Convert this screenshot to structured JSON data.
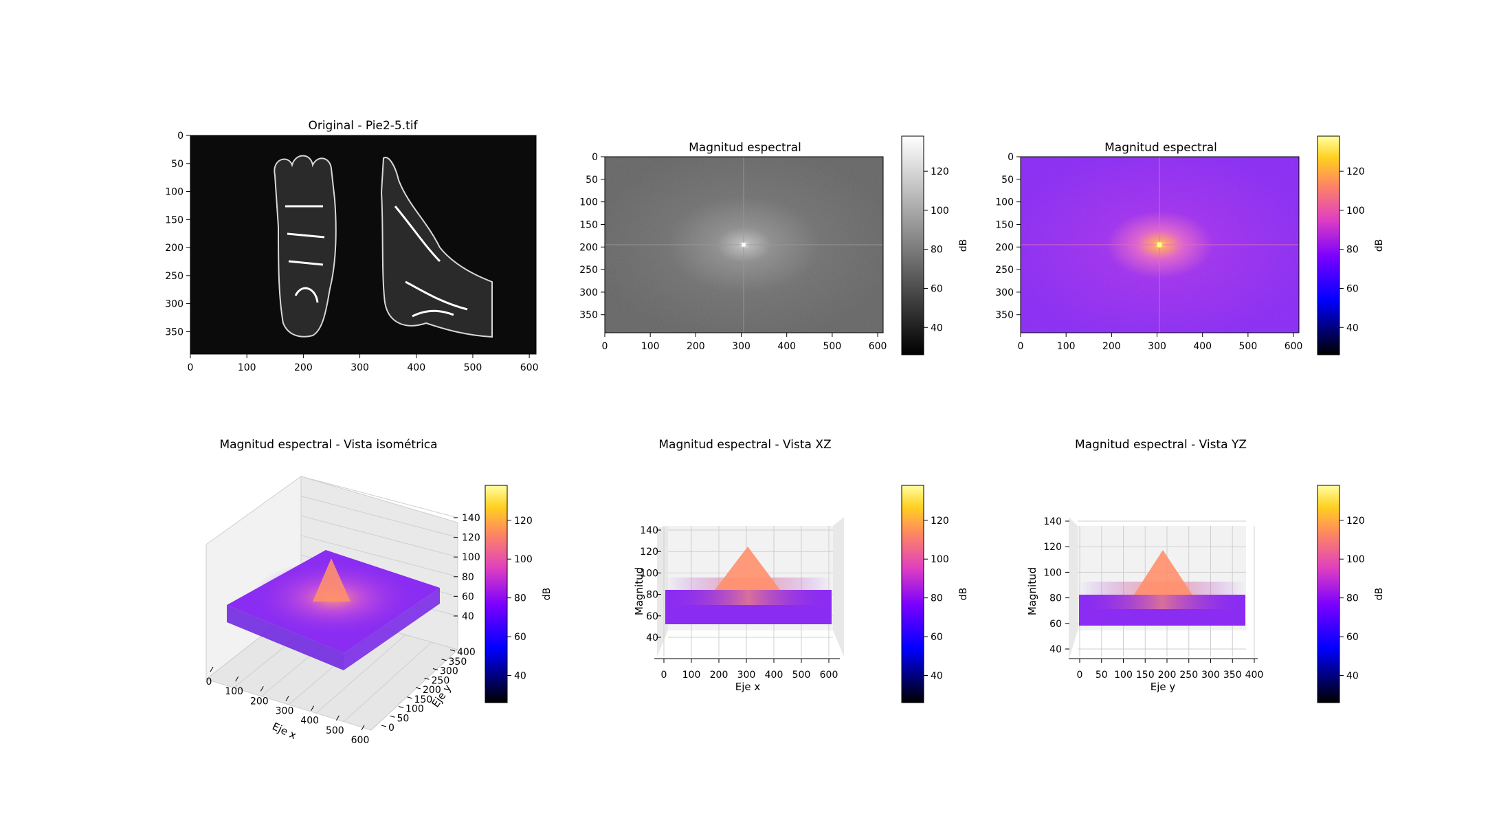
{
  "chart_data": [
    {
      "type": "image",
      "title": "Original - Pie2-5.tif",
      "x_ticks": [
        0,
        100,
        200,
        300,
        400,
        500,
        600
      ],
      "y_ticks": [
        0,
        50,
        100,
        150,
        200,
        250,
        300,
        350
      ],
      "xlim": [
        0,
        612
      ],
      "ylim": [
        390,
        0
      ]
    },
    {
      "type": "heatmap",
      "title": "Magnitud espectral",
      "colormap": "gray",
      "x_ticks": [
        0,
        100,
        200,
        300,
        400,
        500,
        600
      ],
      "y_ticks": [
        0,
        50,
        100,
        150,
        200,
        250,
        300,
        350
      ],
      "xlim": [
        0,
        612
      ],
      "ylim": [
        390,
        0
      ],
      "peak": [
        306,
        195
      ],
      "colorbar": {
        "label": "dB",
        "ticks": [
          40,
          60,
          80,
          100,
          120
        ],
        "range": [
          26,
          138
        ]
      }
    },
    {
      "type": "heatmap",
      "title": "Magnitud espectral",
      "colormap": "gnuplot2",
      "x_ticks": [
        0,
        100,
        200,
        300,
        400,
        500,
        600
      ],
      "y_ticks": [
        0,
        50,
        100,
        150,
        200,
        250,
        300,
        350
      ],
      "xlim": [
        0,
        612
      ],
      "ylim": [
        390,
        0
      ],
      "peak": [
        306,
        195
      ],
      "colorbar": {
        "label": "dB",
        "ticks": [
          40,
          60,
          80,
          100,
          120
        ],
        "range": [
          26,
          138
        ]
      }
    },
    {
      "type": "surface3d",
      "title": "Magnitud espectral - Vista isométrica",
      "xlabel": "Eje x",
      "ylabel": "Eje y",
      "x_ticks": [
        0,
        100,
        200,
        300,
        400,
        500,
        600
      ],
      "y_ticks": [
        0,
        50,
        100,
        150,
        200,
        250,
        300,
        350,
        400
      ],
      "z_ticks": [
        40,
        60,
        80,
        100,
        120,
        140
      ],
      "baseline_db": 70,
      "peak_db": 120,
      "colorbar": {
        "label": "dB",
        "ticks": [
          40,
          60,
          80,
          100,
          120
        ],
        "range": [
          26,
          138
        ]
      }
    },
    {
      "type": "surface3d",
      "title": "Magnitud espectral - Vista XZ",
      "xlabel": "Eje x",
      "zlabel": "Magnitud",
      "x_ticks": [
        0,
        100,
        200,
        300,
        400,
        500,
        600
      ],
      "z_ticks": [
        40,
        60,
        80,
        100,
        120,
        140
      ],
      "baseline_db": 70,
      "peak_db": 120,
      "colorbar": {
        "label": "dB",
        "ticks": [
          40,
          60,
          80,
          100,
          120
        ],
        "range": [
          26,
          138
        ]
      }
    },
    {
      "type": "surface3d",
      "title": "Magnitud espectral - Vista YZ",
      "ylabel": "Eje y",
      "zlabel": "Magnitud",
      "y_ticks": [
        0,
        50,
        100,
        150,
        200,
        250,
        300,
        350,
        400
      ],
      "z_ticks": [
        40,
        60,
        80,
        100,
        120,
        140
      ],
      "baseline_db": 70,
      "peak_db": 120,
      "colorbar": {
        "label": "dB",
        "ticks": [
          40,
          60,
          80,
          100,
          120
        ],
        "range": [
          26,
          138
        ]
      }
    }
  ]
}
